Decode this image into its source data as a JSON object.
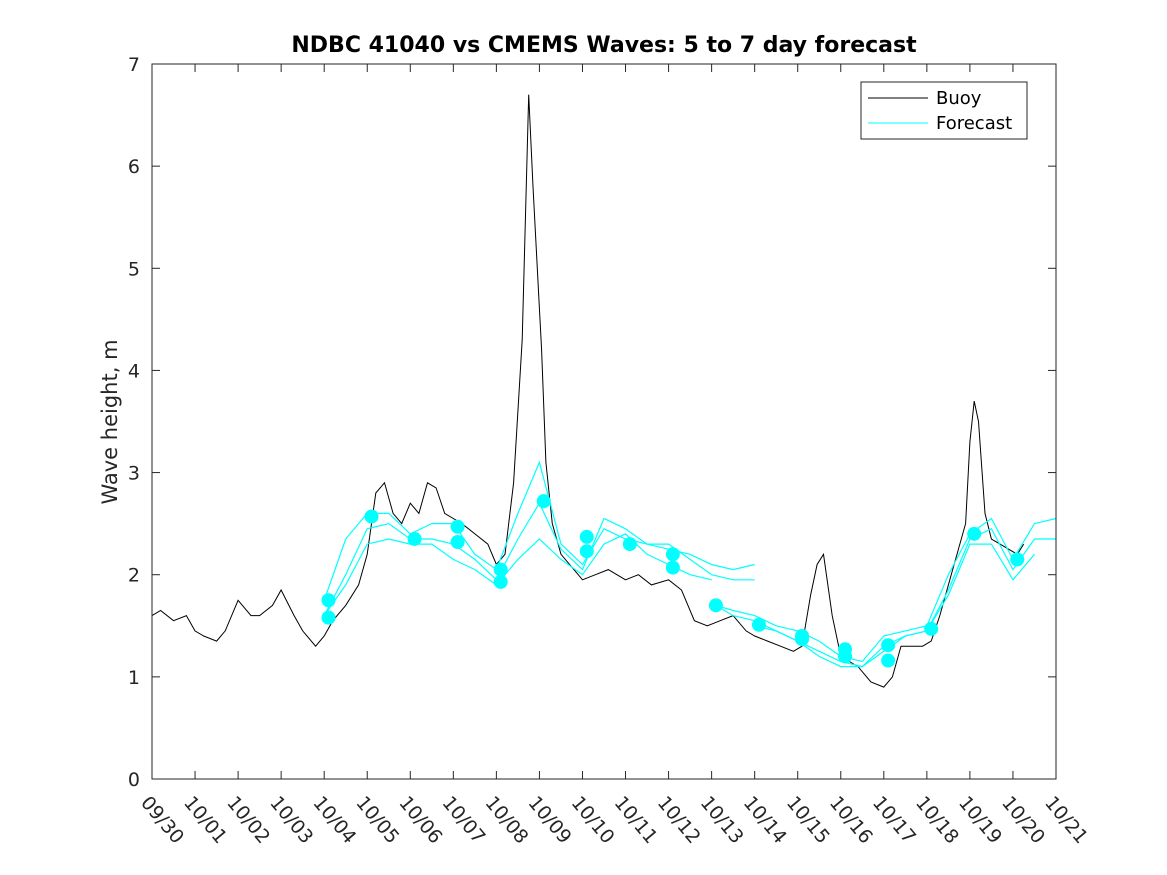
{
  "chart_data": {
    "type": "line",
    "title": "NDBC 41040 vs CMEMS Waves: 5 to 7 day forecast",
    "xlabel": "",
    "ylabel": "Wave height, m",
    "xlim": [
      0,
      21
    ],
    "ylim": [
      0,
      7
    ],
    "x_ticks": [
      {
        "x": 0,
        "label": "09/30"
      },
      {
        "x": 1,
        "label": "10/01"
      },
      {
        "x": 2,
        "label": "10/02"
      },
      {
        "x": 3,
        "label": "10/03"
      },
      {
        "x": 4,
        "label": "10/04"
      },
      {
        "x": 5,
        "label": "10/05"
      },
      {
        "x": 6,
        "label": "10/06"
      },
      {
        "x": 7,
        "label": "10/07"
      },
      {
        "x": 8,
        "label": "10/08"
      },
      {
        "x": 9,
        "label": "10/09"
      },
      {
        "x": 10,
        "label": "10/10"
      },
      {
        "x": 11,
        "label": "10/11"
      },
      {
        "x": 12,
        "label": "10/12"
      },
      {
        "x": 13,
        "label": "10/13"
      },
      {
        "x": 14,
        "label": "10/14"
      },
      {
        "x": 15,
        "label": "10/15"
      },
      {
        "x": 16,
        "label": "10/16"
      },
      {
        "x": 17,
        "label": "10/17"
      },
      {
        "x": 18,
        "label": "10/18"
      },
      {
        "x": 19,
        "label": "10/19"
      },
      {
        "x": 20,
        "label": "10/20"
      },
      {
        "x": 21,
        "label": "10/21"
      }
    ],
    "y_ticks": [
      {
        "y": 0,
        "label": "0"
      },
      {
        "y": 1,
        "label": "1"
      },
      {
        "y": 2,
        "label": "2"
      },
      {
        "y": 3,
        "label": "3"
      },
      {
        "y": 4,
        "label": "4"
      },
      {
        "y": 5,
        "label": "5"
      },
      {
        "y": 6,
        "label": "6"
      },
      {
        "y": 7,
        "label": "7"
      }
    ],
    "legend": {
      "position": "top-right",
      "entries": [
        "Buoy",
        "Forecast"
      ]
    },
    "buoy": {
      "name": "Buoy",
      "color": "#000000",
      "x": [
        0,
        0.2,
        0.5,
        0.8,
        1.0,
        1.2,
        1.5,
        1.7,
        2.0,
        2.3,
        2.5,
        2.8,
        3.0,
        3.3,
        3.5,
        3.8,
        4.0,
        4.2,
        4.5,
        4.8,
        5.0,
        5.2,
        5.4,
        5.6,
        5.8,
        6.0,
        6.2,
        6.4,
        6.6,
        6.8,
        7.0,
        7.2,
        7.5,
        7.8,
        8.0,
        8.2,
        8.4,
        8.6,
        8.75,
        8.85,
        8.95,
        9.05,
        9.15,
        9.3,
        9.5,
        9.8,
        10.0,
        10.3,
        10.6,
        11.0,
        11.3,
        11.6,
        12.0,
        12.3,
        12.6,
        12.9,
        13.2,
        13.5,
        13.8,
        14.0,
        14.3,
        14.6,
        14.9,
        15.1,
        15.3,
        15.45,
        15.6,
        15.8,
        16.0,
        16.2,
        16.4,
        16.7,
        17.0,
        17.2,
        17.4,
        17.6,
        17.9,
        18.1,
        18.3,
        18.5,
        18.7,
        18.9,
        19.0,
        19.1,
        19.2,
        19.35,
        19.5,
        19.7,
        19.9,
        20.1,
        20.25
      ],
      "values": [
        1.6,
        1.65,
        1.55,
        1.6,
        1.45,
        1.4,
        1.35,
        1.45,
        1.75,
        1.6,
        1.6,
        1.7,
        1.85,
        1.6,
        1.45,
        1.3,
        1.4,
        1.55,
        1.7,
        1.9,
        2.2,
        2.8,
        2.9,
        2.6,
        2.5,
        2.7,
        2.6,
        2.9,
        2.85,
        2.6,
        2.55,
        2.5,
        2.4,
        2.3,
        2.1,
        2.2,
        2.9,
        4.3,
        6.7,
        5.8,
        5.0,
        4.2,
        3.1,
        2.5,
        2.2,
        2.05,
        1.95,
        2.0,
        2.05,
        1.95,
        2.0,
        1.9,
        1.95,
        1.85,
        1.55,
        1.5,
        1.55,
        1.6,
        1.45,
        1.4,
        1.35,
        1.3,
        1.25,
        1.3,
        1.8,
        2.1,
        2.2,
        1.6,
        1.2,
        1.15,
        1.1,
        0.95,
        0.9,
        1.0,
        1.3,
        1.3,
        1.3,
        1.35,
        1.6,
        1.9,
        2.2,
        2.5,
        3.3,
        3.7,
        3.5,
        2.6,
        2.35,
        2.3,
        2.25,
        2.2,
        2.3
      ]
    },
    "forecast_series": [
      {
        "name": "Forecast",
        "x": [
          4.0,
          4.5,
          5.0,
          5.5,
          6.0,
          6.5,
          7.0,
          7.5,
          8.0,
          8.5,
          9.0,
          9.5,
          10.0,
          10.5,
          11.0,
          11.5,
          12.0,
          12.5,
          13.0,
          13.5,
          14.0
        ],
        "values": [
          1.75,
          2.35,
          2.6,
          2.6,
          2.4,
          2.5,
          2.5,
          2.2,
          2.05,
          2.6,
          3.1,
          2.3,
          2.1,
          2.45,
          2.35,
          2.3,
          2.25,
          2.2,
          2.1,
          2.05,
          2.1
        ]
      },
      {
        "name": "Forecast",
        "x": [
          4.0,
          4.5,
          5.0,
          5.5,
          6.0,
          6.5,
          7.0,
          7.5,
          8.0,
          8.5,
          9.0,
          9.5,
          10.0,
          10.5,
          11.0,
          11.5,
          12.0,
          12.5,
          13.0,
          13.5,
          14.0
        ],
        "values": [
          1.6,
          2.0,
          2.45,
          2.5,
          2.35,
          2.35,
          2.3,
          2.15,
          1.95,
          2.35,
          2.7,
          2.25,
          2.05,
          2.55,
          2.45,
          2.3,
          2.3,
          2.15,
          2.0,
          1.95,
          1.95
        ]
      },
      {
        "name": "Forecast",
        "x": [
          4.0,
          4.5,
          5.0,
          5.5,
          6.0,
          6.5,
          7.0,
          7.5,
          8.0,
          8.5,
          9.0,
          9.5,
          10.0,
          10.5,
          11.0,
          11.5,
          12.0,
          12.5,
          13.0
        ],
        "values": [
          1.6,
          1.9,
          2.3,
          2.35,
          2.3,
          2.3,
          2.15,
          2.05,
          1.9,
          2.15,
          2.35,
          2.15,
          2.0,
          2.3,
          2.4,
          2.2,
          2.1,
          2.0,
          1.95
        ]
      },
      {
        "name": "Forecast",
        "x": [
          13.1,
          13.5,
          14.0,
          14.5,
          15.0,
          15.5,
          16.0,
          16.5,
          17.0,
          17.5,
          18.0,
          18.5,
          19.0,
          19.5,
          20.0,
          20.5,
          21.0
        ],
        "values": [
          1.7,
          1.65,
          1.6,
          1.5,
          1.45,
          1.35,
          1.2,
          1.15,
          1.4,
          1.45,
          1.5,
          2.0,
          2.4,
          2.55,
          2.15,
          2.5,
          2.55
        ]
      },
      {
        "name": "Forecast",
        "x": [
          13.1,
          13.5,
          14.0,
          14.5,
          15.0,
          15.5,
          16.0,
          16.5,
          17.0,
          17.5,
          18.0,
          18.5,
          19.0,
          19.5,
          20.0,
          20.5,
          21.0
        ],
        "values": [
          1.7,
          1.6,
          1.55,
          1.45,
          1.35,
          1.25,
          1.15,
          1.1,
          1.3,
          1.4,
          1.45,
          1.85,
          2.35,
          2.45,
          2.05,
          2.35,
          2.35
        ]
      },
      {
        "name": "Forecast",
        "x": [
          14.0,
          14.5,
          15.0,
          15.5,
          16.0,
          16.5,
          17.0,
          17.5,
          18.0,
          18.5,
          19.0,
          19.5,
          20.0,
          20.5
        ],
        "values": [
          1.5,
          1.45,
          1.35,
          1.2,
          1.1,
          1.1,
          1.25,
          1.4,
          1.45,
          1.8,
          2.3,
          2.3,
          1.95,
          2.2
        ]
      }
    ],
    "forecast_markers": [
      {
        "x": 4.1,
        "y": 1.75
      },
      {
        "x": 4.1,
        "y": 1.58
      },
      {
        "x": 5.1,
        "y": 2.57
      },
      {
        "x": 6.1,
        "y": 2.35
      },
      {
        "x": 7.1,
        "y": 2.47
      },
      {
        "x": 7.1,
        "y": 2.32
      },
      {
        "x": 8.1,
        "y": 2.05
      },
      {
        "x": 8.1,
        "y": 1.93
      },
      {
        "x": 9.1,
        "y": 2.72
      },
      {
        "x": 10.1,
        "y": 2.37
      },
      {
        "x": 10.1,
        "y": 2.23
      },
      {
        "x": 11.1,
        "y": 2.3
      },
      {
        "x": 12.1,
        "y": 2.2
      },
      {
        "x": 12.1,
        "y": 2.07
      },
      {
        "x": 13.1,
        "y": 1.7
      },
      {
        "x": 14.1,
        "y": 1.51
      },
      {
        "x": 15.1,
        "y": 1.4
      },
      {
        "x": 15.1,
        "y": 1.37
      },
      {
        "x": 16.1,
        "y": 1.27
      },
      {
        "x": 16.1,
        "y": 1.2
      },
      {
        "x": 17.1,
        "y": 1.31
      },
      {
        "x": 17.1,
        "y": 1.16
      },
      {
        "x": 18.1,
        "y": 1.47
      },
      {
        "x": 19.1,
        "y": 2.4
      },
      {
        "x": 20.1,
        "y": 2.15
      }
    ],
    "forecast_color": "#00FFFF"
  }
}
